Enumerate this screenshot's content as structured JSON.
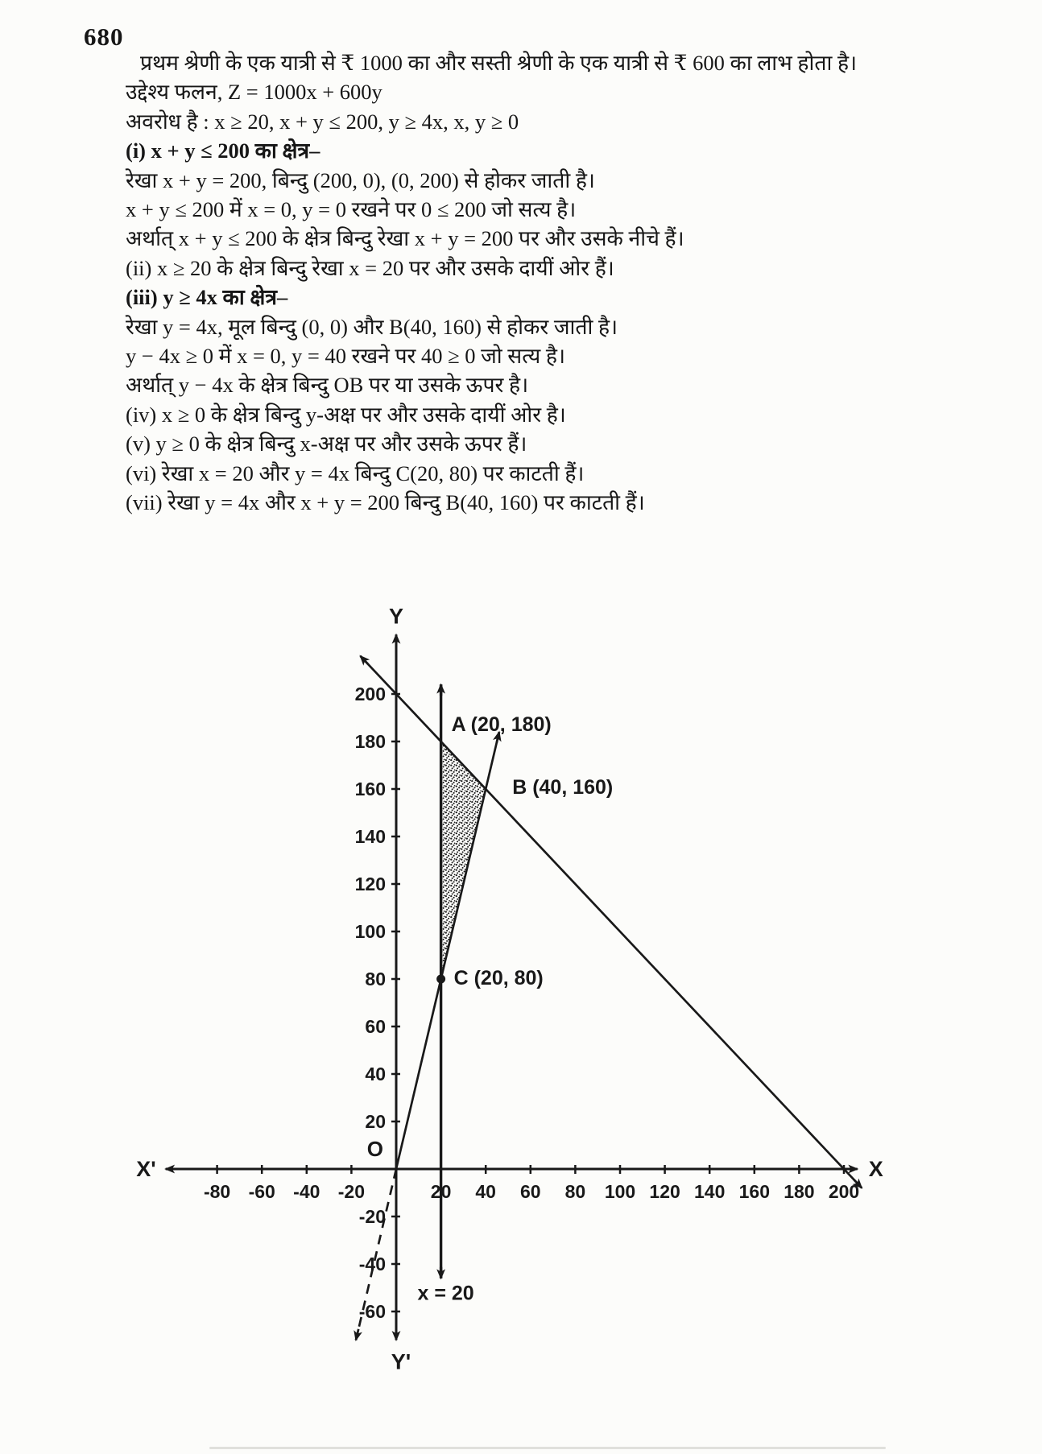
{
  "page": {
    "number": "680"
  },
  "text_lines": [
    {
      "text": "प्रथम श्रेणी के एक यात्री से ₹ 1000 का और सस्ती श्रेणी के एक यात्री से ₹ 600 का लाभ होता है।",
      "bold": false,
      "first": true
    },
    {
      "text": "उद्देश्य फलन, Z = 1000x + 600y",
      "bold": false
    },
    {
      "text": "अवरोध है : x ≥ 20, x + y ≤ 200, y ≥ 4x, x, y ≥ 0",
      "bold": false
    },
    {
      "text": "(i) x + y ≤ 200 का क्षेत्र–",
      "bold": true
    },
    {
      "text": "रेखा x + y = 200, बिन्दु (200, 0), (0, 200) से होकर जाती है।",
      "bold": false
    },
    {
      "text": "x + y ≤ 200 में x = 0, y = 0 रखने पर 0 ≤ 200 जो सत्य है।",
      "bold": false
    },
    {
      "text": "अर्थात् x + y ≤ 200 के क्षेत्र बिन्दु रेखा x + y = 200 पर और उसके नीचे हैं।",
      "bold": false
    },
    {
      "text": "(ii) x ≥ 20 के क्षेत्र बिन्दु रेखा x = 20 पर और उसके दायीं ओर हैं।",
      "bold": false
    },
    {
      "text": "(iii) y ≥ 4x का क्षेत्र–",
      "bold": true
    },
    {
      "text": "रेखा y = 4x, मूल बिन्दु (0, 0) और B(40, 160) से होकर जाती है।",
      "bold": false
    },
    {
      "text": "y − 4x ≥ 0 में x = 0, y = 40 रखने पर 40 ≥ 0 जो सत्य है।",
      "bold": false
    },
    {
      "text": "अर्थात् y − 4x के क्षेत्र बिन्दु OB पर या उसके ऊपर है।",
      "bold": false
    },
    {
      "text": "(iv) x ≥ 0 के क्षेत्र बिन्दु y-अक्ष पर और उसके दायीं ओर है।",
      "bold": false
    },
    {
      "text": "(v) y ≥ 0 के क्षेत्र बिन्दु x-अक्ष पर और उसके ऊपर हैं।",
      "bold": false
    },
    {
      "text": "(vi) रेखा x = 20 और y = 4x बिन्दु C(20, 80) पर काटती हैं।",
      "bold": false
    },
    {
      "text": "(vii) रेखा y = 4x और x + y = 200 बिन्दु B(40, 160) पर काटती हैं।",
      "bold": false
    }
  ],
  "chart_data": {
    "type": "line",
    "description": "Feasible region graph for constraints x ≥ 20, x + y ≤ 200, y ≥ 4x, x, y ≥ 0",
    "xlim": [
      -103,
      206
    ],
    "ylim": [
      -72,
      225
    ],
    "x_ticks": [
      -80,
      -60,
      -40,
      -20,
      20,
      40,
      60,
      80,
      100,
      120,
      140,
      160,
      180,
      200
    ],
    "y_ticks": [
      -60,
      -40,
      -20,
      20,
      40,
      60,
      80,
      100,
      120,
      140,
      160,
      180,
      200
    ],
    "axis_labels": {
      "x_pos": "X",
      "x_neg": "X'",
      "y_pos": "Y",
      "y_neg": "Y'",
      "origin": "O"
    },
    "lines": [
      {
        "name": "line-x-plus-y-200",
        "equation": "x + y = 200",
        "points": [
          [
            -16,
            216
          ],
          [
            208,
            -8
          ]
        ],
        "arrow_start": true,
        "arrow_end": true,
        "dashed": false,
        "width": 2.7
      },
      {
        "name": "line-y-4x",
        "equation": "y = 4x",
        "points": [
          [
            46,
            184
          ],
          [
            0,
            0
          ]
        ],
        "arrow_start": true,
        "arrow_end": false,
        "dashed": false,
        "width": 2.7
      },
      {
        "name": "line-y-4x-extension",
        "equation": "y = 4x",
        "points": [
          [
            0,
            0
          ],
          [
            -18,
            -72
          ]
        ],
        "arrow_start": false,
        "arrow_end": true,
        "dashed": true,
        "width": 2.7
      },
      {
        "name": "line-x-20",
        "equation": "x = 20",
        "points": [
          [
            20,
            204
          ],
          [
            20,
            -46
          ]
        ],
        "arrow_start": true,
        "arrow_end": true,
        "dashed": false,
        "width": 3.4
      }
    ],
    "points": [
      {
        "name": "A",
        "label": "A (20, 180)",
        "x": 20,
        "y": 180,
        "dot": false
      },
      {
        "name": "B",
        "label": "B (40, 160)",
        "x": 40,
        "y": 160,
        "dot": false
      },
      {
        "name": "C",
        "label": "C (20, 80)",
        "x": 20,
        "y": 80,
        "dot": true
      }
    ],
    "region": {
      "name": "feasible-region",
      "vertices": [
        [
          20,
          180
        ],
        [
          40,
          160
        ],
        [
          20,
          80
        ]
      ],
      "fill": "stipple"
    },
    "annotations": [
      {
        "text": "x = 20",
        "x": 20,
        "y": -55
      }
    ],
    "ink_color": "#191919"
  }
}
